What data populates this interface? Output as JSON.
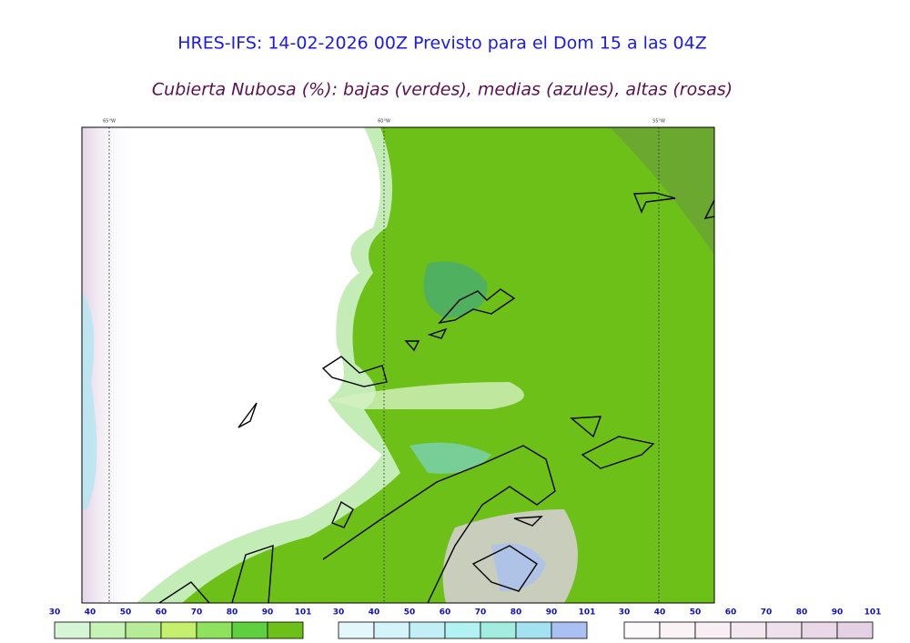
{
  "header": {
    "title": "HRES-IFS: 14-02-2026 00Z Previsto para el Dom 15 a las 04Z",
    "subtitle": "Cubierta Nubosa (%): bajas (verdes), medias (azules), altas (rosas)"
  },
  "map": {
    "meridian_labels": [
      "65°W",
      "60°W",
      "55°W"
    ]
  },
  "colorbars": [
    {
      "ticks": [
        30,
        40,
        50,
        60,
        70,
        80,
        90,
        101
      ],
      "colors": [
        "#d6f4d6",
        "#c6f4b6",
        "#b6ec96",
        "#c4f06e",
        "#8ee25e",
        "#5ed040",
        "#6cc018"
      ]
    },
    {
      "ticks": [
        30,
        40,
        50,
        60,
        70,
        80,
        90,
        101
      ],
      "colors": [
        "#e4f8fc",
        "#d4f4fa",
        "#c2eef6",
        "#b2f2f2",
        "#a2ece0",
        "#a4e2f2",
        "#aac0f2"
      ]
    },
    {
      "ticks": [
        30,
        40,
        50,
        60,
        70,
        80,
        90,
        101
      ],
      "colors": [
        "#fdfafb",
        "#fbf2f6",
        "#f8eef3",
        "#f4e8f0",
        "#eee0ec",
        "#e8d8e8",
        "#e4d2e4"
      ]
    }
  ]
}
